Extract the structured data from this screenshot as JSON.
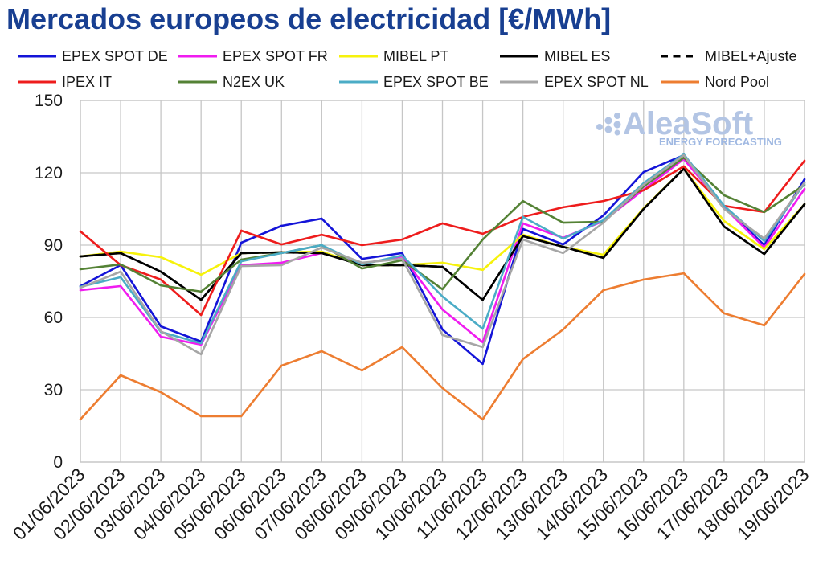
{
  "title_color": "#183f91",
  "logo": {
    "name": "AleaSoft",
    "tagline": "ENERGY FORECASTING"
  },
  "chart_data": {
    "type": "line",
    "title": "Mercados europeos de electricidad [€/MWh]",
    "xlabel": "",
    "ylabel": "",
    "ylim": [
      0,
      150
    ],
    "yticks": [
      0,
      30,
      60,
      90,
      120,
      150
    ],
    "grid": true,
    "legend_position": "top",
    "categories": [
      "01/06/2023",
      "02/06/2023",
      "03/06/2023",
      "04/06/2023",
      "05/06/2023",
      "06/06/2023",
      "07/06/2023",
      "08/06/2023",
      "09/06/2023",
      "10/06/2023",
      "11/06/2023",
      "12/06/2023",
      "13/06/2023",
      "14/06/2023",
      "15/06/2023",
      "16/06/2023",
      "17/06/2023",
      "18/06/2023",
      "19/06/2023"
    ],
    "series": [
      {
        "name": "EPEX SPOT DE",
        "color": "#1414d8",
        "dashed": false,
        "values": [
          73.0,
          81.7,
          56.3,
          50.0,
          91.0,
          98.0,
          101.0,
          84.3,
          86.7,
          55.0,
          40.7,
          96.7,
          90.3,
          102.3,
          120.3,
          127.3,
          106.0,
          90.0,
          117.3
        ]
      },
      {
        "name": "EPEX SPOT FR",
        "color": "#f01cf0",
        "dashed": false,
        "values": [
          71.3,
          73.0,
          52.0,
          48.7,
          81.7,
          82.7,
          86.7,
          82.3,
          85.3,
          63.3,
          49.7,
          99.0,
          93.0,
          100.0,
          113.0,
          125.7,
          105.7,
          89.0,
          113.3
        ]
      },
      {
        "name": "MIBEL PT",
        "color": "#f6f20c",
        "dashed": false,
        "values": [
          85.3,
          87.3,
          85.0,
          77.7,
          86.7,
          87.0,
          87.3,
          81.7,
          81.7,
          82.7,
          79.7,
          94.3,
          89.3,
          86.0,
          105.3,
          121.7,
          100.0,
          88.3,
          107.0
        ]
      },
      {
        "name": "MIBEL ES",
        "color": "#000000",
        "dashed": false,
        "values": [
          85.3,
          86.7,
          79.0,
          67.3,
          86.7,
          87.0,
          86.7,
          81.7,
          81.7,
          81.0,
          67.3,
          93.7,
          89.3,
          84.7,
          105.0,
          121.7,
          97.7,
          86.3,
          107.0
        ]
      },
      {
        "name": "MIBEL+Ajuste",
        "color": "#000000",
        "dashed": true,
        "values": [
          85.3,
          86.7,
          79.0,
          67.3,
          86.7,
          87.0,
          86.7,
          81.7,
          81.7,
          81.0,
          67.3,
          93.7,
          89.3,
          84.7,
          105.0,
          121.7,
          97.7,
          86.3,
          107.0
        ]
      },
      {
        "name": "IPEX IT",
        "color": "#ee1c1c",
        "dashed": false,
        "values": [
          95.7,
          81.7,
          75.7,
          61.0,
          96.0,
          90.3,
          94.3,
          90.0,
          92.3,
          99.0,
          94.7,
          101.7,
          105.7,
          108.3,
          112.7,
          122.7,
          106.3,
          103.7,
          125.0
        ]
      },
      {
        "name": "N2EX UK",
        "color": "#548235",
        "dashed": false,
        "values": [
          80.0,
          82.0,
          73.3,
          70.7,
          84.0,
          86.7,
          90.0,
          80.3,
          83.7,
          71.7,
          92.3,
          108.3,
          99.3,
          99.7,
          114.3,
          126.3,
          110.7,
          103.7,
          115.0
        ]
      },
      {
        "name": "EPEX SPOT BE",
        "color": "#4bacc6",
        "dashed": false,
        "values": [
          72.7,
          76.7,
          54.0,
          49.3,
          83.3,
          86.7,
          90.0,
          82.0,
          85.7,
          68.7,
          55.3,
          101.7,
          92.7,
          100.3,
          115.7,
          127.7,
          106.3,
          91.7,
          115.7
        ]
      },
      {
        "name": "EPEX SPOT NL",
        "color": "#a6a6a6",
        "dashed": false,
        "values": [
          72.3,
          79.0,
          54.3,
          44.7,
          81.3,
          81.7,
          89.0,
          82.7,
          84.3,
          52.7,
          47.7,
          92.3,
          86.7,
          99.3,
          115.0,
          127.3,
          105.0,
          92.7,
          116.0
        ]
      },
      {
        "name": "Nord Pool",
        "color": "#ed7d31",
        "dashed": false,
        "values": [
          17.7,
          36.0,
          29.0,
          19.0,
          19.0,
          40.0,
          46.0,
          38.0,
          47.7,
          30.7,
          17.7,
          42.7,
          55.0,
          71.3,
          75.7,
          78.3,
          61.7,
          56.7,
          78.0
        ]
      }
    ]
  }
}
